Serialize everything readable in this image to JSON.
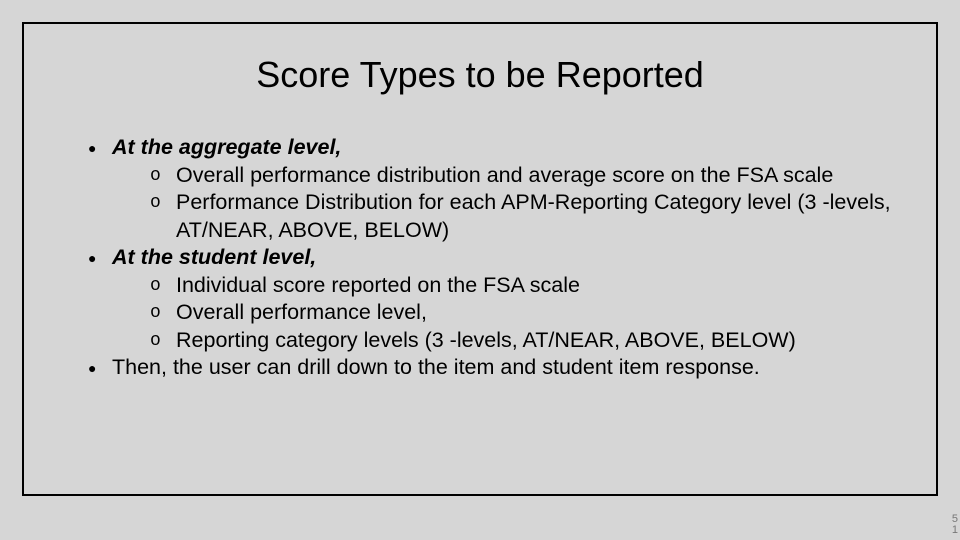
{
  "slide": {
    "background_color": "#d6d6d6",
    "frame_border_color": "#000000",
    "title": "Score Types to be Reported",
    "title_fontsize": 36,
    "body_fontsize": 21.5,
    "text_color": "#000000",
    "bullets": [
      {
        "label": "At the aggregate level,",
        "bold_italic": true,
        "sub": [
          "Overall performance distribution and average score on the FSA scale",
          "Performance Distribution for each APM-Reporting Category level (3 -levels, AT/NEAR, ABOVE, BELOW)"
        ]
      },
      {
        "label": "At the student level,",
        "bold_italic": true,
        "sub": [
          "Individual score reported on the FSA scale",
          "Overall performance level,",
          "Reporting category levels (3 -levels, AT/NEAR, ABOVE, BELOW)"
        ]
      },
      {
        "label": "Then, the user can drill down to the item and student item response.",
        "bold_italic": false,
        "sub": []
      }
    ],
    "page_number_top": "5",
    "page_number_bottom": "1"
  }
}
